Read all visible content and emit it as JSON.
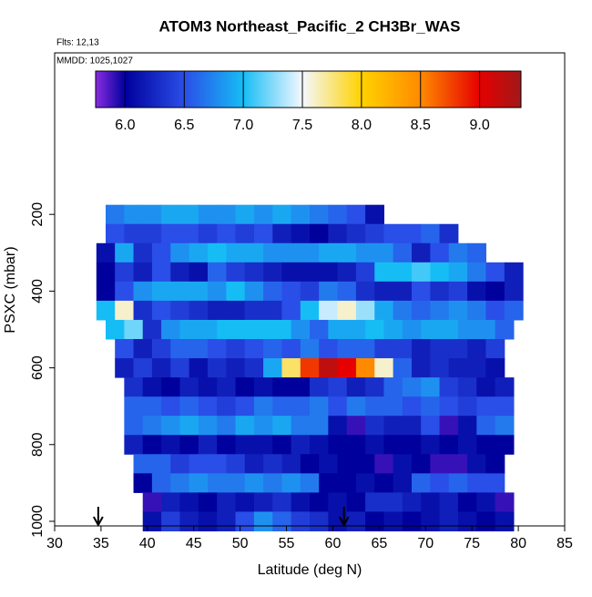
{
  "chart_data": {
    "type": "heatmap",
    "title": "ATOM3 Northeast_Pacific_2 CH3Br_WAS",
    "annotations": [
      "Flts: 12,13",
      "MMDD: 1025,1027"
    ],
    "xlabel": "Latitude (deg N)",
    "ylabel": "PSXC (mbar)",
    "xlim": [
      30,
      85
    ],
    "xticks": [
      30,
      35,
      40,
      45,
      50,
      55,
      60,
      65,
      70,
      75,
      80,
      85
    ],
    "ylim": [
      1012,
      -221
    ],
    "yticks": [
      200,
      400,
      600,
      800,
      1000
    ],
    "y_reversed": true,
    "clim": [
      5.75,
      9.35
    ],
    "cticks": [
      {
        "value": 6,
        "label": "6.0"
      },
      {
        "value": 6.5,
        "label": "6.5"
      },
      {
        "value": 7,
        "label": "7.0"
      },
      {
        "value": 7.5,
        "label": "7.5"
      },
      {
        "value": 8,
        "label": "8.0"
      },
      {
        "value": 8.5,
        "label": "8.5"
      },
      {
        "value": 9,
        "label": "9.0"
      }
    ],
    "colormap": [
      {
        "value": 5.75,
        "color": "#8a2be2"
      },
      {
        "value": 6.0,
        "color": "#00009c"
      },
      {
        "value": 6.5,
        "color": "#2a4ee8"
      },
      {
        "value": 7.0,
        "color": "#16bdf5"
      },
      {
        "value": 7.5,
        "color": "#f4f8ff"
      },
      {
        "value": 8.0,
        "color": "#ffd200"
      },
      {
        "value": 8.5,
        "color": "#ff8a00"
      },
      {
        "value": 9.0,
        "color": "#e60000"
      },
      {
        "value": 9.35,
        "color": "#a01818"
      }
    ],
    "row_height": 50,
    "lat_step": 2,
    "rows": [
      {
        "pressure": 200,
        "lat_start": 35.5,
        "values": [
          6.7,
          6.8,
          6.8,
          6.9,
          6.9,
          6.8,
          6.8,
          6.9,
          6.8,
          6.9,
          6.8,
          6.7,
          6.6,
          6.5,
          6.1
        ]
      },
      {
        "pressure": 250,
        "lat_start": 35.5,
        "values": [
          6.5,
          6.4,
          6.4,
          6.5,
          6.5,
          6.4,
          6.5,
          6.4,
          6.5,
          6.2,
          6.1,
          6.0,
          6.2,
          6.3,
          6.4,
          6.5,
          6.5,
          6.6,
          6.3
        ]
      },
      {
        "pressure": 300,
        "lat_start": 34.5,
        "values": [
          6.1,
          6.9,
          6.3,
          6.5,
          6.8,
          6.9,
          7.0,
          6.9,
          6.9,
          6.8,
          6.8,
          6.8,
          6.9,
          6.9,
          6.8,
          6.8,
          6.6,
          6.2,
          6.5,
          6.7,
          6.6
        ]
      },
      {
        "pressure": 350,
        "lat_start": 34.5,
        "values": [
          6.0,
          6.4,
          6.2,
          6.5,
          6.2,
          6.1,
          6.6,
          6.4,
          6.3,
          6.2,
          6.1,
          6.1,
          6.1,
          6.2,
          6.4,
          7.0,
          7.0,
          7.1,
          7.0,
          6.9,
          6.7,
          6.5,
          6.2
        ]
      },
      {
        "pressure": 400,
        "lat_start": 34.5,
        "values": [
          6.0,
          6.5,
          6.8,
          6.9,
          6.9,
          6.9,
          6.8,
          7.0,
          6.8,
          6.6,
          6.5,
          6.4,
          6.7,
          6.6,
          6.3,
          6.2,
          6.2,
          6.5,
          6.3,
          6.4,
          6.1,
          6.0,
          6.2
        ]
      },
      {
        "pressure": 450,
        "lat_start": 34.5,
        "values": [
          7.0,
          7.6,
          6.3,
          6.5,
          6.4,
          6.3,
          6.2,
          6.2,
          6.3,
          6.3,
          6.5,
          7.0,
          7.4,
          7.6,
          7.3,
          6.9,
          6.7,
          6.6,
          6.7,
          6.8,
          6.7,
          6.5,
          6.6
        ]
      },
      {
        "pressure": 500,
        "lat_start": 35.5,
        "values": [
          7.0,
          7.2,
          6.3,
          6.8,
          6.9,
          6.9,
          7.0,
          7.0,
          7.0,
          7.0,
          6.8,
          6.6,
          6.9,
          6.9,
          7.0,
          6.9,
          6.8,
          6.9,
          6.9,
          6.8,
          6.8,
          6.6
        ]
      },
      {
        "pressure": 550,
        "lat_start": 36.5,
        "values": [
          6.5,
          6.2,
          6.4,
          6.6,
          6.6,
          6.5,
          6.4,
          6.5,
          6.6,
          6.5,
          6.7,
          6.5,
          6.6,
          6.6,
          6.4,
          6.4,
          6.2,
          6.3,
          6.3,
          6.2,
          6.4
        ]
      },
      {
        "pressure": 600,
        "lat_start": 36.5,
        "values": [
          6.2,
          6.4,
          6.2,
          6.4,
          6.1,
          6.3,
          6.2,
          6.3,
          6.9,
          7.8,
          8.8,
          9.2,
          9.0,
          8.5,
          7.6,
          6.6,
          6.2,
          6.3,
          6.2,
          6.2,
          6.1
        ]
      },
      {
        "pressure": 650,
        "lat_start": 37.5,
        "values": [
          6.3,
          6.1,
          6.0,
          6.2,
          6.1,
          6.2,
          6.0,
          6.1,
          6.0,
          6.0,
          6.3,
          6.4,
          6.2,
          6.3,
          6.6,
          6.7,
          6.8,
          6.4,
          6.3,
          6.1,
          6.2
        ]
      },
      {
        "pressure": 700,
        "lat_start": 37.5,
        "values": [
          6.6,
          6.6,
          6.5,
          6.6,
          6.5,
          6.4,
          6.5,
          6.7,
          6.6,
          6.6,
          6.7,
          6.5,
          6.7,
          6.6,
          6.6,
          6.5,
          6.6,
          6.5,
          6.4,
          6.5,
          6.5
        ]
      },
      {
        "pressure": 750,
        "lat_start": 37.5,
        "values": [
          6.6,
          6.7,
          6.8,
          6.9,
          6.8,
          6.7,
          6.9,
          6.8,
          6.9,
          6.7,
          6.7,
          6.1,
          5.9,
          6.3,
          6.2,
          6.2,
          6.5,
          5.9,
          6.1,
          6.6,
          6.7
        ]
      },
      {
        "pressure": 800,
        "lat_start": 37.5,
        "values": [
          6.2,
          6.0,
          6.1,
          6.0,
          6.2,
          6.0,
          6.1,
          6.1,
          6.0,
          6.2,
          6.1,
          6.0,
          6.0,
          6.1,
          6.0,
          6.0,
          6.1,
          6.0,
          6.1,
          6.0,
          6.0
        ]
      },
      {
        "pressure": 850,
        "lat_start": 38.5,
        "values": [
          6.6,
          6.6,
          6.4,
          6.5,
          6.5,
          6.4,
          6.2,
          6.3,
          6.2,
          6.0,
          6.1,
          6.0,
          6.0,
          5.9,
          6.1,
          6.0,
          5.9,
          5.9,
          6.1,
          6.0
        ]
      },
      {
        "pressure": 900,
        "lat_start": 38.5,
        "values": [
          6.0,
          6.6,
          6.7,
          6.8,
          6.7,
          6.7,
          6.8,
          6.7,
          6.8,
          6.7,
          6.0,
          6.0,
          6.1,
          6.0,
          6.1,
          6.6,
          6.5,
          6.6,
          6.5,
          6.5
        ]
      },
      {
        "pressure": 950,
        "lat_start": 39.5,
        "values": [
          5.9,
          6.2,
          6.1,
          6.0,
          6.2,
          6.1,
          6.2,
          6.3,
          6.1,
          6.0,
          6.1,
          6.0,
          6.3,
          6.3,
          6.2,
          6.1,
          6.2,
          6.0,
          6.1,
          5.9
        ]
      },
      {
        "pressure": 1000,
        "lat_start": 39.5,
        "values": [
          6.1,
          6.4,
          6.2,
          6.1,
          6.2,
          6.5,
          6.8,
          6.6,
          6.4,
          6.3,
          6.1,
          6.2,
          6.0,
          6.1,
          6.0,
          6.1,
          6.2,
          6.1,
          6.0,
          6.1
        ]
      }
    ],
    "arrows": [
      34.7,
      61.2
    ]
  }
}
